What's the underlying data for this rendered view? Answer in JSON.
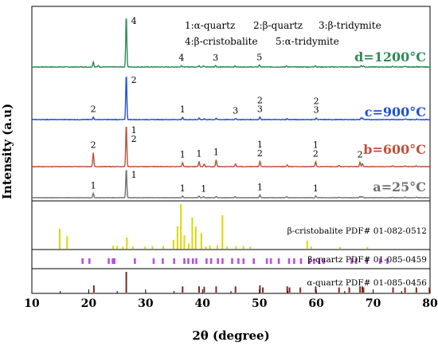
{
  "chart_data": {
    "type": "line",
    "xlabel": "2θ (degree)",
    "ylabel": "Intensity (a.u)",
    "xlim": [
      10,
      80
    ],
    "xticks": [
      10,
      20,
      30,
      40,
      50,
      60,
      70,
      80
    ],
    "legend": [
      "1:α-quartz",
      "2:β-quartz",
      "3:β-tridymite",
      "4:β-cristobalite",
      "5:α-tridymite"
    ],
    "series": [
      {
        "name": "d=1200°C",
        "color": "#2e8b57",
        "peaks": [
          [
            20.8,
            0.1
          ],
          [
            21.7,
            0.03
          ],
          [
            26.6,
            1.0
          ],
          [
            36.3,
            0.03
          ],
          [
            39.4,
            0.03
          ],
          [
            40.2,
            0.02
          ],
          [
            42.3,
            0.03
          ],
          [
            45.7,
            0.02
          ],
          [
            50.0,
            0.04
          ],
          [
            54.8,
            0.02
          ],
          [
            59.8,
            0.03
          ],
          [
            67.9,
            0.03
          ],
          [
            68.3,
            0.02
          ],
          [
            73.4,
            0.01
          ],
          [
            75.6,
            0.01
          ],
          [
            77.6,
            0.01
          ]
        ],
        "annotations": [
          {
            "x": 26.6,
            "label": "4"
          },
          {
            "x": 36.3,
            "label": "4"
          },
          {
            "x": 42.3,
            "label": "3"
          },
          {
            "x": 50.0,
            "label": "5"
          }
        ]
      },
      {
        "name": "c=900°C",
        "color": "#1f4fd8",
        "peaks": [
          [
            20.8,
            0.06
          ],
          [
            26.6,
            1.0
          ],
          [
            36.5,
            0.05
          ],
          [
            39.4,
            0.03
          ],
          [
            40.3,
            0.02
          ],
          [
            42.4,
            0.03
          ],
          [
            45.8,
            0.03
          ],
          [
            50.1,
            0.06
          ],
          [
            54.9,
            0.02
          ],
          [
            60.0,
            0.04
          ],
          [
            67.9,
            0.04
          ],
          [
            68.2,
            0.03
          ],
          [
            73.5,
            0.01
          ],
          [
            75.7,
            0.01
          ],
          [
            77.7,
            0.01
          ]
        ],
        "annotations": [
          {
            "x": 20.8,
            "label": "2"
          },
          {
            "x": 26.6,
            "label": "2"
          },
          {
            "x": 36.5,
            "label": "1"
          },
          {
            "x": 45.8,
            "label": "3"
          },
          {
            "x": 50.1,
            "label": "3"
          },
          {
            "x": 50.1,
            "label": "2"
          },
          {
            "x": 60.0,
            "label": "3"
          },
          {
            "x": 60.0,
            "label": "2"
          }
        ]
      },
      {
        "name": "b=600°C",
        "color": "#c0503c",
        "peaks": [
          [
            20.8,
            0.32
          ],
          [
            26.6,
            1.0
          ],
          [
            36.5,
            0.1
          ],
          [
            39.4,
            0.12
          ],
          [
            40.3,
            0.06
          ],
          [
            42.4,
            0.16
          ],
          [
            45.8,
            0.06
          ],
          [
            50.1,
            0.13
          ],
          [
            54.9,
            0.04
          ],
          [
            59.9,
            0.12
          ],
          [
            64.0,
            0.03
          ],
          [
            67.7,
            0.1
          ],
          [
            68.1,
            0.07
          ],
          [
            73.4,
            0.02
          ],
          [
            75.6,
            0.02
          ],
          [
            77.6,
            0.02
          ]
        ],
        "annotations": [
          {
            "x": 20.8,
            "label": "2"
          },
          {
            "x": 26.6,
            "label": "1"
          },
          {
            "x": 26.6,
            "label": "2"
          },
          {
            "x": 36.5,
            "label": "1"
          },
          {
            "x": 39.4,
            "label": "1"
          },
          {
            "x": 42.4,
            "label": "1"
          },
          {
            "x": 50.1,
            "label": "2"
          },
          {
            "x": 50.1,
            "label": "1"
          },
          {
            "x": 59.9,
            "label": "2"
          },
          {
            "x": 59.9,
            "label": "1"
          },
          {
            "x": 67.7,
            "label": "2"
          }
        ]
      },
      {
        "name": "a=25°C",
        "color": "#707070",
        "peaks": [
          [
            20.8,
            0.15
          ],
          [
            26.6,
            1.0
          ],
          [
            36.5,
            0.06
          ],
          [
            39.4,
            0.06
          ],
          [
            40.2,
            0.04
          ],
          [
            42.4,
            0.05
          ],
          [
            45.7,
            0.04
          ],
          [
            50.1,
            0.1
          ],
          [
            54.8,
            0.03
          ],
          [
            59.9,
            0.06
          ],
          [
            64.0,
            0.02
          ],
          [
            67.7,
            0.05
          ],
          [
            68.1,
            0.04
          ],
          [
            73.4,
            0.02
          ],
          [
            75.6,
            0.02
          ],
          [
            77.6,
            0.02
          ]
        ],
        "annotations": [
          {
            "x": 20.8,
            "label": "1"
          },
          {
            "x": 26.6,
            "label": "1"
          },
          {
            "x": 36.5,
            "label": "1"
          },
          {
            "x": 40.2,
            "label": "1"
          },
          {
            "x": 50.1,
            "label": "1"
          },
          {
            "x": 59.9,
            "label": "1"
          }
        ]
      }
    ],
    "references": [
      {
        "label": "β-cristobalite PDF# 01-082-0512",
        "color": "#d9d900",
        "lines": [
          [
            14.9,
            0.45
          ],
          [
            16.2,
            0.28
          ],
          [
            24.3,
            0.07
          ],
          [
            25.0,
            0.06
          ],
          [
            26.0,
            0.05
          ],
          [
            26.7,
            0.25
          ],
          [
            27.8,
            0.05
          ],
          [
            29.9,
            0.05
          ],
          [
            31.2,
            0.06
          ],
          [
            33.1,
            0.06
          ],
          [
            34.9,
            0.2
          ],
          [
            35.6,
            0.5
          ],
          [
            36.2,
            1.0
          ],
          [
            36.8,
            0.3
          ],
          [
            37.6,
            0.12
          ],
          [
            38.2,
            0.7
          ],
          [
            38.8,
            0.5
          ],
          [
            39.8,
            0.35
          ],
          [
            40.6,
            0.05
          ],
          [
            41.3,
            0.07
          ],
          [
            42.6,
            0.08
          ],
          [
            43.5,
            0.75
          ],
          [
            44.3,
            0.05
          ],
          [
            45.9,
            0.06
          ],
          [
            47.2,
            0.06
          ],
          [
            48.4,
            0.05
          ],
          [
            58.4,
            0.18
          ],
          [
            59.1,
            0.05
          ],
          [
            64.2,
            0.04
          ],
          [
            69.0,
            0.04
          ]
        ]
      },
      {
        "label": "β-quartz PDF# 01-085-0459",
        "color": "#b74fe6",
        "lines": [
          [
            18.9,
            0.7
          ],
          [
            20.1,
            0.7
          ],
          [
            23.5,
            0.7
          ],
          [
            24.2,
            0.7
          ],
          [
            24.5,
            0.9
          ],
          [
            28.1,
            0.7
          ],
          [
            31.4,
            0.7
          ],
          [
            33.0,
            0.7
          ],
          [
            35.0,
            0.7
          ],
          [
            36.8,
            0.7
          ],
          [
            37.5,
            0.7
          ],
          [
            38.3,
            0.7
          ],
          [
            38.9,
            0.7
          ],
          [
            40.7,
            0.7
          ],
          [
            41.5,
            0.7
          ],
          [
            42.7,
            0.7
          ],
          [
            43.5,
            0.7
          ],
          [
            45.2,
            0.7
          ],
          [
            46.3,
            0.7
          ],
          [
            47.2,
            0.7
          ],
          [
            49.0,
            0.7
          ],
          [
            51.3,
            0.7
          ],
          [
            52.0,
            0.7
          ],
          [
            53.4,
            0.7
          ],
          [
            55.2,
            0.7
          ],
          [
            56.1,
            0.7
          ],
          [
            57.3,
            0.7
          ],
          [
            58.8,
            0.7
          ],
          [
            59.6,
            0.7
          ],
          [
            60.5,
            0.7
          ],
          [
            61.3,
            0.7
          ],
          [
            66.2,
            0.7
          ],
          [
            67.0,
            0.7
          ],
          [
            68.9,
            0.7
          ],
          [
            71.2,
            0.7
          ],
          [
            72.5,
            0.7
          ]
        ]
      },
      {
        "label": "α-quartz PDF# 01-085-0456",
        "color": "#7a2d1c",
        "lines": [
          [
            20.9,
            0.35
          ],
          [
            26.6,
            1.0
          ],
          [
            36.5,
            0.3
          ],
          [
            39.4,
            0.3
          ],
          [
            40.3,
            0.28
          ],
          [
            42.4,
            0.3
          ],
          [
            45.8,
            0.3
          ],
          [
            50.1,
            0.35
          ],
          [
            50.6,
            0.25
          ],
          [
            54.9,
            0.3
          ],
          [
            55.3,
            0.25
          ],
          [
            57.2,
            0.25
          ],
          [
            59.9,
            0.3
          ],
          [
            64.0,
            0.25
          ],
          [
            65.8,
            0.25
          ],
          [
            67.7,
            0.3
          ],
          [
            68.1,
            0.3
          ],
          [
            68.3,
            0.25
          ],
          [
            73.5,
            0.25
          ],
          [
            75.6,
            0.25
          ],
          [
            77.6,
            0.25
          ],
          [
            79.9,
            0.25
          ]
        ]
      }
    ]
  }
}
